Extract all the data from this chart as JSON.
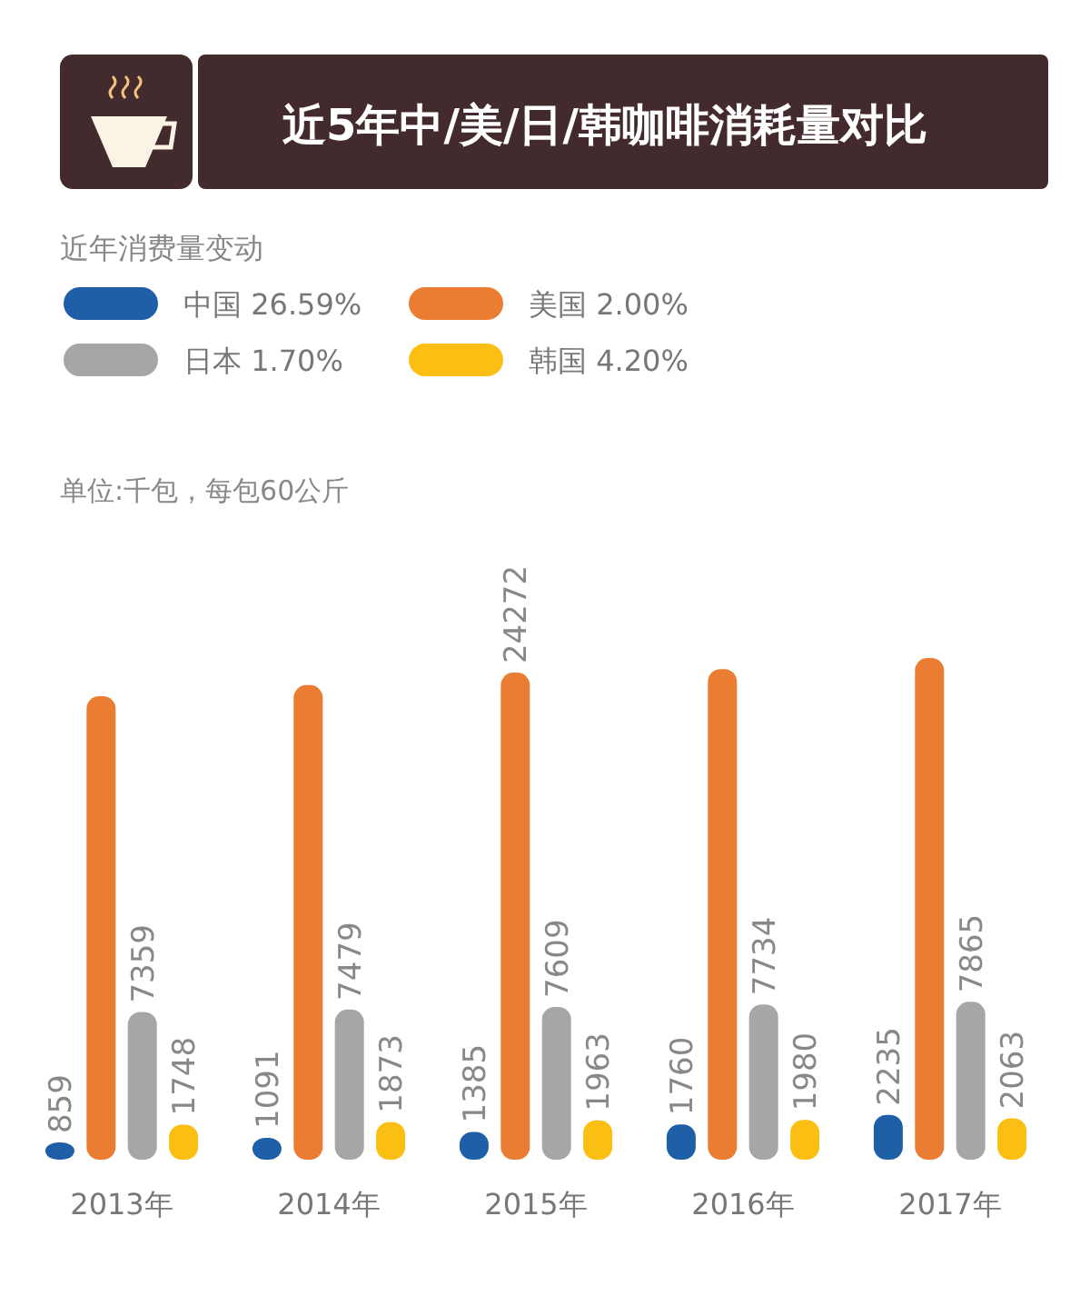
{
  "chart_data": {
    "type": "bar",
    "title": "近5年中/美/日/韩咖啡消耗量对比",
    "subtitle": "近年消费量变动",
    "annotations": [
      "单位:千包，每包60公斤"
    ],
    "categories": [
      "2013年",
      "2014年",
      "2015年",
      "2016年",
      "2017年"
    ],
    "legend": "top left",
    "series": [
      {
        "name": "中国 26.59%",
        "color": "#1f5fa8",
        "values": [
          859,
          1091,
          1385,
          1760,
          2235
        ],
        "value_labels": [
          "859",
          "1091",
          "1385",
          "1760",
          "2235"
        ]
      },
      {
        "name": "美国 2.00%",
        "color": "#eb7d32",
        "values": [
          23100,
          23650,
          24272,
          24450,
          25000
        ],
        "value_labels": [
          null,
          null,
          "24272",
          null,
          null
        ]
      },
      {
        "name": "日本 1.70%",
        "color": "#a6a6a6",
        "values": [
          7359,
          7479,
          7609,
          7734,
          7865
        ],
        "value_labels": [
          "7359",
          "7479",
          "7609",
          "7734",
          "7865"
        ]
      },
      {
        "name": "韩国 4.20%",
        "color": "#fbbf14",
        "values": [
          1748,
          1873,
          1963,
          1980,
          2063
        ],
        "value_labels": [
          "1748",
          "1873",
          "1963",
          "1980",
          "2063"
        ]
      }
    ]
  }
}
